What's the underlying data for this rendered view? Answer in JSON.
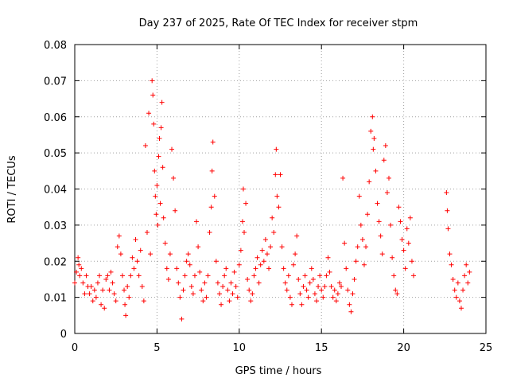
{
  "chart_data": {
    "type": "scatter",
    "title": "Day 237 of 2025, Rate Of TEC Index for receiver stpm",
    "xlabel": "GPS time / hours",
    "ylabel": "ROTI / TECUs",
    "xlim": [
      0,
      25
    ],
    "ylim": [
      0,
      0.08
    ],
    "xticks": [
      0,
      5,
      10,
      15,
      20,
      25
    ],
    "yticks": [
      0,
      0.01,
      0.02,
      0.03,
      0.04,
      0.05,
      0.06,
      0.07,
      0.08
    ],
    "xtick_labels": [
      "0",
      "5",
      "10",
      "15",
      "20",
      "25"
    ],
    "ytick_labels": [
      "0",
      "0.01",
      "0.02",
      "0.03",
      "0.04",
      "0.05",
      "0.06",
      "0.07",
      "0.08"
    ],
    "grid": true,
    "marker": "+",
    "series": [
      {
        "color": "#ff0000",
        "points": [
          [
            0.0,
            0.014
          ],
          [
            0.1,
            0.017
          ],
          [
            0.2,
            0.021
          ],
          [
            0.25,
            0.019
          ],
          [
            0.3,
            0.016
          ],
          [
            0.4,
            0.018
          ],
          [
            0.5,
            0.014
          ],
          [
            0.6,
            0.011
          ],
          [
            0.7,
            0.016
          ],
          [
            0.8,
            0.013
          ],
          [
            0.9,
            0.011
          ],
          [
            1.0,
            0.013
          ],
          [
            1.1,
            0.009
          ],
          [
            1.2,
            0.012
          ],
          [
            1.3,
            0.01
          ],
          [
            1.4,
            0.014
          ],
          [
            1.5,
            0.016
          ],
          [
            1.6,
            0.008
          ],
          [
            1.7,
            0.012
          ],
          [
            1.8,
            0.007
          ],
          [
            1.9,
            0.015
          ],
          [
            2.0,
            0.016
          ],
          [
            2.1,
            0.012
          ],
          [
            2.2,
            0.017
          ],
          [
            2.3,
            0.014
          ],
          [
            2.4,
            0.011
          ],
          [
            2.5,
            0.009
          ],
          [
            2.6,
            0.024
          ],
          [
            2.7,
            0.027
          ],
          [
            2.8,
            0.022
          ],
          [
            2.9,
            0.016
          ],
          [
            3.0,
            0.012
          ],
          [
            3.05,
            0.008
          ],
          [
            3.1,
            0.005
          ],
          [
            3.2,
            0.013
          ],
          [
            3.3,
            0.01
          ],
          [
            3.4,
            0.016
          ],
          [
            3.5,
            0.021
          ],
          [
            3.6,
            0.018
          ],
          [
            3.7,
            0.026
          ],
          [
            3.8,
            0.02
          ],
          [
            3.9,
            0.016
          ],
          [
            4.0,
            0.023
          ],
          [
            4.1,
            0.013
          ],
          [
            4.2,
            0.009
          ],
          [
            4.3,
            0.052
          ],
          [
            4.4,
            0.028
          ],
          [
            4.5,
            0.061
          ],
          [
            4.6,
            0.022
          ],
          [
            4.7,
            0.07
          ],
          [
            4.75,
            0.066
          ],
          [
            4.8,
            0.058
          ],
          [
            4.85,
            0.045
          ],
          [
            4.9,
            0.038
          ],
          [
            4.95,
            0.033
          ],
          [
            5.0,
            0.041
          ],
          [
            5.05,
            0.03
          ],
          [
            5.1,
            0.049
          ],
          [
            5.15,
            0.054
          ],
          [
            5.2,
            0.036
          ],
          [
            5.25,
            0.057
          ],
          [
            5.3,
            0.064
          ],
          [
            5.35,
            0.046
          ],
          [
            5.4,
            0.032
          ],
          [
            5.5,
            0.025
          ],
          [
            5.6,
            0.018
          ],
          [
            5.7,
            0.015
          ],
          [
            5.8,
            0.022
          ],
          [
            5.9,
            0.051
          ],
          [
            6.0,
            0.043
          ],
          [
            6.1,
            0.034
          ],
          [
            6.2,
            0.018
          ],
          [
            6.3,
            0.014
          ],
          [
            6.4,
            0.01
          ],
          [
            6.5,
            0.004
          ],
          [
            6.6,
            0.012
          ],
          [
            6.7,
            0.016
          ],
          [
            6.8,
            0.02
          ],
          [
            6.9,
            0.022
          ],
          [
            7.0,
            0.019
          ],
          [
            7.1,
            0.013
          ],
          [
            7.2,
            0.011
          ],
          [
            7.3,
            0.016
          ],
          [
            7.4,
            0.031
          ],
          [
            7.5,
            0.024
          ],
          [
            7.6,
            0.017
          ],
          [
            7.7,
            0.012
          ],
          [
            7.8,
            0.009
          ],
          [
            7.9,
            0.014
          ],
          [
            8.0,
            0.01
          ],
          [
            8.1,
            0.016
          ],
          [
            8.2,
            0.028
          ],
          [
            8.3,
            0.035
          ],
          [
            8.35,
            0.045
          ],
          [
            8.4,
            0.053
          ],
          [
            8.5,
            0.038
          ],
          [
            8.6,
            0.02
          ],
          [
            8.7,
            0.014
          ],
          [
            8.8,
            0.011
          ],
          [
            8.9,
            0.008
          ],
          [
            9.0,
            0.013
          ],
          [
            9.1,
            0.016
          ],
          [
            9.2,
            0.018
          ],
          [
            9.3,
            0.012
          ],
          [
            9.4,
            0.009
          ],
          [
            9.5,
            0.014
          ],
          [
            9.6,
            0.011
          ],
          [
            9.7,
            0.017
          ],
          [
            9.8,
            0.013
          ],
          [
            9.9,
            0.01
          ],
          [
            10.0,
            0.019
          ],
          [
            10.1,
            0.023
          ],
          [
            10.2,
            0.031
          ],
          [
            10.25,
            0.04
          ],
          [
            10.3,
            0.028
          ],
          [
            10.4,
            0.036
          ],
          [
            10.5,
            0.015
          ],
          [
            10.6,
            0.012
          ],
          [
            10.7,
            0.009
          ],
          [
            10.8,
            0.011
          ],
          [
            10.9,
            0.016
          ],
          [
            11.0,
            0.018
          ],
          [
            11.1,
            0.021
          ],
          [
            11.2,
            0.014
          ],
          [
            11.3,
            0.019
          ],
          [
            11.4,
            0.023
          ],
          [
            11.5,
            0.02
          ],
          [
            11.6,
            0.026
          ],
          [
            11.7,
            0.022
          ],
          [
            11.8,
            0.018
          ],
          [
            11.9,
            0.024
          ],
          [
            12.0,
            0.032
          ],
          [
            12.1,
            0.028
          ],
          [
            12.2,
            0.044
          ],
          [
            12.25,
            0.051
          ],
          [
            12.3,
            0.038
          ],
          [
            12.4,
            0.035
          ],
          [
            12.5,
            0.044
          ],
          [
            12.6,
            0.024
          ],
          [
            12.7,
            0.018
          ],
          [
            12.8,
            0.014
          ],
          [
            12.9,
            0.012
          ],
          [
            13.0,
            0.016
          ],
          [
            13.1,
            0.01
          ],
          [
            13.2,
            0.008
          ],
          [
            13.3,
            0.019
          ],
          [
            13.4,
            0.022
          ],
          [
            13.5,
            0.027
          ],
          [
            13.6,
            0.015
          ],
          [
            13.7,
            0.011
          ],
          [
            13.8,
            0.008
          ],
          [
            13.9,
            0.013
          ],
          [
            14.0,
            0.016
          ],
          [
            14.1,
            0.012
          ],
          [
            14.2,
            0.01
          ],
          [
            14.3,
            0.014
          ],
          [
            14.4,
            0.018
          ],
          [
            14.5,
            0.015
          ],
          [
            14.6,
            0.011
          ],
          [
            14.7,
            0.009
          ],
          [
            14.8,
            0.013
          ],
          [
            14.9,
            0.016
          ],
          [
            15.0,
            0.012
          ],
          [
            15.1,
            0.01
          ],
          [
            15.2,
            0.013
          ],
          [
            15.3,
            0.016
          ],
          [
            15.4,
            0.021
          ],
          [
            15.5,
            0.017
          ],
          [
            15.6,
            0.013
          ],
          [
            15.7,
            0.01
          ],
          [
            15.8,
            0.012
          ],
          [
            15.9,
            0.009
          ],
          [
            16.0,
            0.011
          ],
          [
            16.1,
            0.014
          ],
          [
            16.2,
            0.013
          ],
          [
            16.3,
            0.043
          ],
          [
            16.4,
            0.025
          ],
          [
            16.5,
            0.018
          ],
          [
            16.6,
            0.012
          ],
          [
            16.7,
            0.008
          ],
          [
            16.8,
            0.006
          ],
          [
            16.9,
            0.011
          ],
          [
            17.0,
            0.015
          ],
          [
            17.1,
            0.02
          ],
          [
            17.2,
            0.024
          ],
          [
            17.3,
            0.038
          ],
          [
            17.4,
            0.03
          ],
          [
            17.5,
            0.026
          ],
          [
            17.6,
            0.019
          ],
          [
            17.7,
            0.024
          ],
          [
            17.8,
            0.033
          ],
          [
            17.9,
            0.042
          ],
          [
            18.0,
            0.056
          ],
          [
            18.1,
            0.06
          ],
          [
            18.15,
            0.051
          ],
          [
            18.2,
            0.054
          ],
          [
            18.3,
            0.045
          ],
          [
            18.4,
            0.036
          ],
          [
            18.5,
            0.031
          ],
          [
            18.6,
            0.027
          ],
          [
            18.7,
            0.022
          ],
          [
            18.8,
            0.048
          ],
          [
            18.9,
            0.052
          ],
          [
            19.0,
            0.039
          ],
          [
            19.1,
            0.043
          ],
          [
            19.2,
            0.03
          ],
          [
            19.3,
            0.021
          ],
          [
            19.4,
            0.016
          ],
          [
            19.5,
            0.012
          ],
          [
            19.6,
            0.011
          ],
          [
            19.7,
            0.035
          ],
          [
            19.8,
            0.031
          ],
          [
            19.9,
            0.026
          ],
          [
            20.0,
            0.023
          ],
          [
            20.1,
            0.018
          ],
          [
            20.2,
            0.029
          ],
          [
            20.3,
            0.025
          ],
          [
            20.4,
            0.032
          ],
          [
            20.5,
            0.02
          ],
          [
            20.6,
            0.016
          ],
          [
            22.6,
            0.039
          ],
          [
            22.65,
            0.034
          ],
          [
            22.7,
            0.029
          ],
          [
            22.8,
            0.022
          ],
          [
            22.9,
            0.019
          ],
          [
            23.0,
            0.015
          ],
          [
            23.1,
            0.012
          ],
          [
            23.2,
            0.01
          ],
          [
            23.3,
            0.014
          ],
          [
            23.4,
            0.009
          ],
          [
            23.5,
            0.007
          ],
          [
            23.6,
            0.012
          ],
          [
            23.7,
            0.016
          ],
          [
            23.8,
            0.019
          ],
          [
            23.9,
            0.014
          ],
          [
            24.0,
            0.017
          ]
        ]
      }
    ]
  }
}
